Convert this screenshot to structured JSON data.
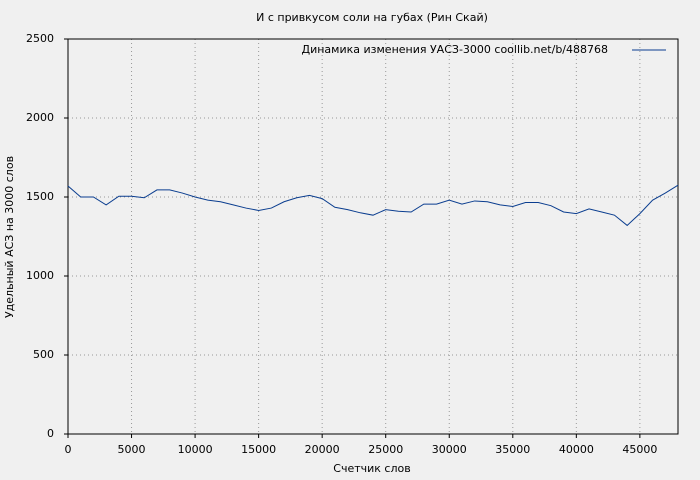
{
  "chart_data": {
    "type": "line",
    "title": "И с привкусом соли на губах (Рин Скай)",
    "x_label": "Счетчик слов",
    "y_label": "Удельный АСЗ на 3000 слов",
    "x": [
      0,
      1000,
      2000,
      3000,
      4000,
      5000,
      6000,
      7000,
      8000,
      9000,
      10000,
      11000,
      12000,
      13000,
      14000,
      15000,
      16000,
      17000,
      18000,
      19000,
      20000,
      21000,
      22000,
      23000,
      24000,
      25000,
      26000,
      27000,
      28000,
      29000,
      30000,
      31000,
      32000,
      33000,
      34000,
      35000,
      36000,
      37000,
      38000,
      39000,
      40000,
      41000,
      42000,
      43000,
      44000,
      45000,
      46000,
      47000,
      48000
    ],
    "series": [
      {
        "name": "Динамика изменения УАСЗ-3000  coollib.net/b/488768",
        "color": "#0a3d8f",
        "values": [
          1570,
          1500,
          1500,
          1450,
          1505,
          1505,
          1495,
          1545,
          1545,
          1525,
          1500,
          1480,
          1470,
          1450,
          1430,
          1415,
          1430,
          1470,
          1495,
          1510,
          1490,
          1435,
          1420,
          1400,
          1385,
          1420,
          1410,
          1405,
          1455,
          1455,
          1480,
          1455,
          1475,
          1470,
          1450,
          1440,
          1465,
          1465,
          1445,
          1405,
          1395,
          1425,
          1405,
          1385,
          1320,
          1395,
          1480,
          1525,
          1575
        ]
      }
    ],
    "xlim": [
      0,
      48000
    ],
    "ylim": [
      0,
      2500
    ],
    "xticks": [
      0,
      5000,
      10000,
      15000,
      20000,
      25000,
      30000,
      35000,
      40000,
      45000
    ],
    "yticks": [
      0,
      500,
      1000,
      1500,
      2000,
      2500
    ],
    "grid": true,
    "legend": "top-right"
  }
}
